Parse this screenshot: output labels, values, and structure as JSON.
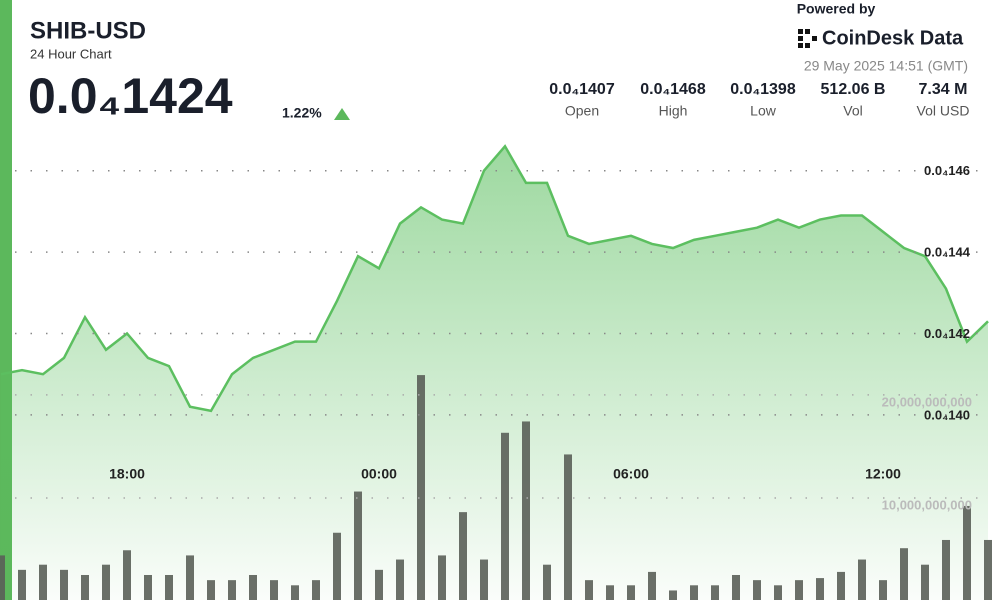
{
  "header": {
    "powered": "Powered by",
    "brand": "CoinDesk Data",
    "timestamp": "29 May 2025 14:51 (GMT)",
    "price": "0.0₄1424",
    "change": "1.22%",
    "stats": [
      {
        "value": "0.0₄1407",
        "label": "Open"
      },
      {
        "value": "0.0₄1468",
        "label": "High"
      },
      {
        "value": "0.0₄1398",
        "label": "Low"
      },
      {
        "value": "512.06 B",
        "label": "Vol"
      },
      {
        "value": "7.34 M",
        "label": "Vol USD"
      }
    ]
  },
  "chart_data": {
    "type": "line",
    "title": "SHIB-USD",
    "subtitle": "24 Hour Chart",
    "categories": [
      null,
      null,
      null,
      null,
      null,
      null,
      "18:00",
      null,
      null,
      null,
      null,
      null,
      null,
      null,
      null,
      null,
      null,
      null,
      "00:00",
      null,
      null,
      null,
      null,
      null,
      null,
      null,
      null,
      null,
      null,
      null,
      "06:00",
      null,
      null,
      null,
      null,
      null,
      null,
      null,
      null,
      null,
      null,
      null,
      "12:00",
      null,
      null,
      null,
      null,
      null
    ],
    "ylim": [
      1.39e-05,
      1.47e-05
    ],
    "yticks": [
      {
        "value": 1.46e-05,
        "label": "0.0₄146"
      },
      {
        "value": 1.44e-05,
        "label": "0.0₄144"
      },
      {
        "value": 1.42e-05,
        "label": "0.0₄142"
      },
      {
        "value": 1.4e-05,
        "label": "0.0₄140"
      }
    ],
    "y2lim": [
      0,
      23000000000
    ],
    "y2ticks": [
      {
        "value": 20000000000,
        "label": "20,000,000,000"
      },
      {
        "value": 10000000000,
        "label": "10,000,000,000"
      }
    ],
    "grid": true,
    "series": [
      {
        "color": "#5cbf60",
        "values": [
          1.41e-05,
          1.411e-05,
          1.41e-05,
          1.414e-05,
          1.424e-05,
          1.416e-05,
          1.42e-05,
          1.414e-05,
          1.412e-05,
          1.402e-05,
          1.401e-05,
          1.41e-05,
          1.414e-05,
          1.416e-05,
          1.418e-05,
          1.418e-05,
          1.428e-05,
          1.439e-05,
          1.436e-05,
          1.447e-05,
          1.451e-05,
          1.448e-05,
          1.447e-05,
          1.46e-05,
          1.466e-05,
          1.457e-05,
          1.457e-05,
          1.444e-05,
          1.442e-05,
          1.443e-05,
          1.444e-05,
          1.442e-05,
          1.441e-05,
          1.443e-05,
          1.444e-05,
          1.445e-05,
          1.446e-05,
          1.448e-05,
          1.446e-05,
          1.448e-05,
          1.449e-05,
          1.449e-05,
          1.445e-05,
          1.441e-05,
          1.439e-05,
          1.431e-05,
          1.418e-05,
          1.423e-05
        ]
      },
      {
        "type": "bar",
        "axis": "y2",
        "color": "#5a5f58",
        "values": [
          5200000000,
          3800000000,
          4300000000,
          3800000000,
          3300000000,
          4300000000,
          5700000000,
          3300000000,
          3300000000,
          5200000000,
          2800000000,
          2800000000,
          3300000000,
          2800000000,
          2300000000,
          2800000000,
          7400000000,
          11400000000,
          3800000000,
          4800000000,
          22700000000,
          5200000000,
          9400000000,
          4800000000,
          17100000000,
          18200000000,
          4300000000,
          15000000000,
          2800000000,
          2300000000,
          2300000000,
          3600000000,
          1800000000,
          2300000000,
          2300000000,
          3300000000,
          2800000000,
          2300000000,
          2800000000,
          3000000000,
          3600000000,
          4800000000,
          2800000000,
          5900000000,
          4300000000,
          6700000000,
          10000000000,
          6700000000
        ]
      }
    ]
  }
}
